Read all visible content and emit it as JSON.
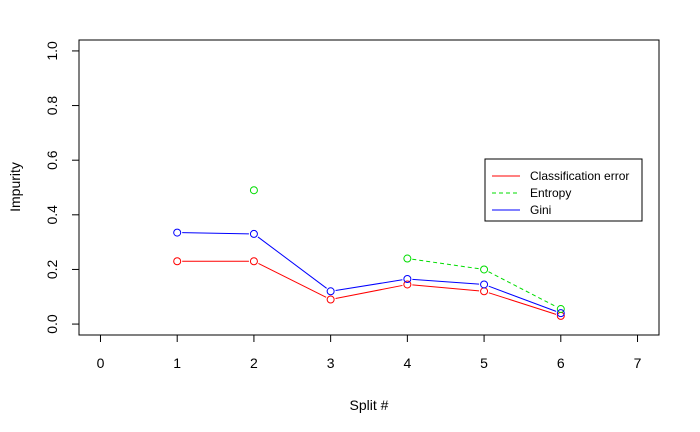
{
  "chart_data": {
    "type": "line",
    "xlabel": "Split #",
    "ylabel": "Impurity",
    "xlim": [
      -0.28,
      7.28
    ],
    "ylim": [
      -0.04,
      1.04
    ],
    "x_ticks": [
      "0",
      "1",
      "2",
      "3",
      "4",
      "5",
      "6",
      "7"
    ],
    "y_ticks": [
      "0.0",
      "0.2",
      "0.4",
      "0.6",
      "0.8",
      "1.0"
    ],
    "grid": false,
    "legend_position": "right",
    "series": [
      {
        "name": "Classification error",
        "color": "#ff0000",
        "line_style": "solid",
        "points": [
          {
            "x": 1,
            "y": 0.23
          },
          {
            "x": 2,
            "y": 0.23
          },
          {
            "x": 3,
            "y": 0.09
          },
          {
            "x": 4,
            "y": 0.145
          },
          {
            "x": 5,
            "y": 0.12
          },
          {
            "x": 6,
            "y": 0.03
          }
        ],
        "lines": [
          [
            1,
            2
          ],
          [
            2,
            3
          ],
          [
            3,
            4
          ],
          [
            4,
            5
          ],
          [
            5,
            6
          ]
        ]
      },
      {
        "name": "Entropy",
        "color": "#00dd00",
        "line_style": "dashed",
        "points": [
          {
            "x": 2,
            "y": 0.49
          },
          {
            "x": 4,
            "y": 0.24
          },
          {
            "x": 5,
            "y": 0.2
          },
          {
            "x": 6,
            "y": 0.055
          }
        ],
        "lines": [
          [
            4,
            5
          ],
          [
            5,
            6
          ]
        ]
      },
      {
        "name": "Gini",
        "color": "#0000ff",
        "line_style": "solid",
        "points": [
          {
            "x": 1,
            "y": 0.335
          },
          {
            "x": 2,
            "y": 0.33
          },
          {
            "x": 3,
            "y": 0.12
          },
          {
            "x": 4,
            "y": 0.165
          },
          {
            "x": 5,
            "y": 0.145
          },
          {
            "x": 6,
            "y": 0.04
          }
        ],
        "lines": [
          [
            1,
            2
          ],
          [
            2,
            3
          ],
          [
            3,
            4
          ],
          [
            4,
            5
          ],
          [
            5,
            6
          ]
        ]
      }
    ]
  }
}
